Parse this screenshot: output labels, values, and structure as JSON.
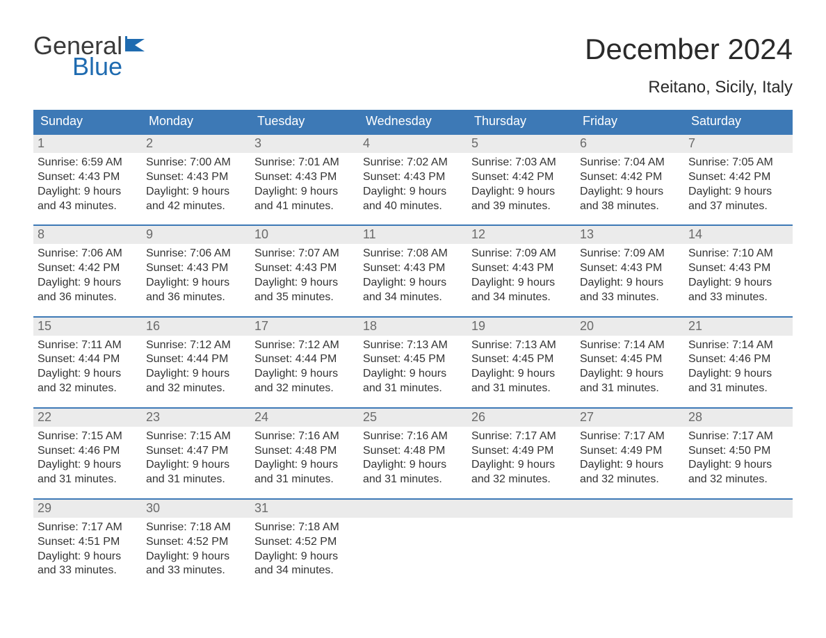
{
  "colors": {
    "header_bg": "#3d79b6",
    "header_text": "#ffffff",
    "daynum_bg": "#ebebeb",
    "daynum_text": "#6a6a6a",
    "body_text": "#333333",
    "week_border": "#3d79b6",
    "logo_gray": "#3a3a3a",
    "logo_blue": "#1f6bb0",
    "page_bg": "#ffffff"
  },
  "logo": {
    "line1": "General",
    "line2": "Blue"
  },
  "title": "December 2024",
  "location": "Reitano, Sicily, Italy",
  "daysOfWeek": [
    "Sunday",
    "Monday",
    "Tuesday",
    "Wednesday",
    "Thursday",
    "Friday",
    "Saturday"
  ],
  "weeks": [
    [
      {
        "n": "1",
        "sunrise": "Sunrise: 6:59 AM",
        "sunset": "Sunset: 4:43 PM",
        "d1": "Daylight: 9 hours",
        "d2": "and 43 minutes."
      },
      {
        "n": "2",
        "sunrise": "Sunrise: 7:00 AM",
        "sunset": "Sunset: 4:43 PM",
        "d1": "Daylight: 9 hours",
        "d2": "and 42 minutes."
      },
      {
        "n": "3",
        "sunrise": "Sunrise: 7:01 AM",
        "sunset": "Sunset: 4:43 PM",
        "d1": "Daylight: 9 hours",
        "d2": "and 41 minutes."
      },
      {
        "n": "4",
        "sunrise": "Sunrise: 7:02 AM",
        "sunset": "Sunset: 4:43 PM",
        "d1": "Daylight: 9 hours",
        "d2": "and 40 minutes."
      },
      {
        "n": "5",
        "sunrise": "Sunrise: 7:03 AM",
        "sunset": "Sunset: 4:42 PM",
        "d1": "Daylight: 9 hours",
        "d2": "and 39 minutes."
      },
      {
        "n": "6",
        "sunrise": "Sunrise: 7:04 AM",
        "sunset": "Sunset: 4:42 PM",
        "d1": "Daylight: 9 hours",
        "d2": "and 38 minutes."
      },
      {
        "n": "7",
        "sunrise": "Sunrise: 7:05 AM",
        "sunset": "Sunset: 4:42 PM",
        "d1": "Daylight: 9 hours",
        "d2": "and 37 minutes."
      }
    ],
    [
      {
        "n": "8",
        "sunrise": "Sunrise: 7:06 AM",
        "sunset": "Sunset: 4:42 PM",
        "d1": "Daylight: 9 hours",
        "d2": "and 36 minutes."
      },
      {
        "n": "9",
        "sunrise": "Sunrise: 7:06 AM",
        "sunset": "Sunset: 4:43 PM",
        "d1": "Daylight: 9 hours",
        "d2": "and 36 minutes."
      },
      {
        "n": "10",
        "sunrise": "Sunrise: 7:07 AM",
        "sunset": "Sunset: 4:43 PM",
        "d1": "Daylight: 9 hours",
        "d2": "and 35 minutes."
      },
      {
        "n": "11",
        "sunrise": "Sunrise: 7:08 AM",
        "sunset": "Sunset: 4:43 PM",
        "d1": "Daylight: 9 hours",
        "d2": "and 34 minutes."
      },
      {
        "n": "12",
        "sunrise": "Sunrise: 7:09 AM",
        "sunset": "Sunset: 4:43 PM",
        "d1": "Daylight: 9 hours",
        "d2": "and 34 minutes."
      },
      {
        "n": "13",
        "sunrise": "Sunrise: 7:09 AM",
        "sunset": "Sunset: 4:43 PM",
        "d1": "Daylight: 9 hours",
        "d2": "and 33 minutes."
      },
      {
        "n": "14",
        "sunrise": "Sunrise: 7:10 AM",
        "sunset": "Sunset: 4:43 PM",
        "d1": "Daylight: 9 hours",
        "d2": "and 33 minutes."
      }
    ],
    [
      {
        "n": "15",
        "sunrise": "Sunrise: 7:11 AM",
        "sunset": "Sunset: 4:44 PM",
        "d1": "Daylight: 9 hours",
        "d2": "and 32 minutes."
      },
      {
        "n": "16",
        "sunrise": "Sunrise: 7:12 AM",
        "sunset": "Sunset: 4:44 PM",
        "d1": "Daylight: 9 hours",
        "d2": "and 32 minutes."
      },
      {
        "n": "17",
        "sunrise": "Sunrise: 7:12 AM",
        "sunset": "Sunset: 4:44 PM",
        "d1": "Daylight: 9 hours",
        "d2": "and 32 minutes."
      },
      {
        "n": "18",
        "sunrise": "Sunrise: 7:13 AM",
        "sunset": "Sunset: 4:45 PM",
        "d1": "Daylight: 9 hours",
        "d2": "and 31 minutes."
      },
      {
        "n": "19",
        "sunrise": "Sunrise: 7:13 AM",
        "sunset": "Sunset: 4:45 PM",
        "d1": "Daylight: 9 hours",
        "d2": "and 31 minutes."
      },
      {
        "n": "20",
        "sunrise": "Sunrise: 7:14 AM",
        "sunset": "Sunset: 4:45 PM",
        "d1": "Daylight: 9 hours",
        "d2": "and 31 minutes."
      },
      {
        "n": "21",
        "sunrise": "Sunrise: 7:14 AM",
        "sunset": "Sunset: 4:46 PM",
        "d1": "Daylight: 9 hours",
        "d2": "and 31 minutes."
      }
    ],
    [
      {
        "n": "22",
        "sunrise": "Sunrise: 7:15 AM",
        "sunset": "Sunset: 4:46 PM",
        "d1": "Daylight: 9 hours",
        "d2": "and 31 minutes."
      },
      {
        "n": "23",
        "sunrise": "Sunrise: 7:15 AM",
        "sunset": "Sunset: 4:47 PM",
        "d1": "Daylight: 9 hours",
        "d2": "and 31 minutes."
      },
      {
        "n": "24",
        "sunrise": "Sunrise: 7:16 AM",
        "sunset": "Sunset: 4:48 PM",
        "d1": "Daylight: 9 hours",
        "d2": "and 31 minutes."
      },
      {
        "n": "25",
        "sunrise": "Sunrise: 7:16 AM",
        "sunset": "Sunset: 4:48 PM",
        "d1": "Daylight: 9 hours",
        "d2": "and 31 minutes."
      },
      {
        "n": "26",
        "sunrise": "Sunrise: 7:17 AM",
        "sunset": "Sunset: 4:49 PM",
        "d1": "Daylight: 9 hours",
        "d2": "and 32 minutes."
      },
      {
        "n": "27",
        "sunrise": "Sunrise: 7:17 AM",
        "sunset": "Sunset: 4:49 PM",
        "d1": "Daylight: 9 hours",
        "d2": "and 32 minutes."
      },
      {
        "n": "28",
        "sunrise": "Sunrise: 7:17 AM",
        "sunset": "Sunset: 4:50 PM",
        "d1": "Daylight: 9 hours",
        "d2": "and 32 minutes."
      }
    ],
    [
      {
        "n": "29",
        "sunrise": "Sunrise: 7:17 AM",
        "sunset": "Sunset: 4:51 PM",
        "d1": "Daylight: 9 hours",
        "d2": "and 33 minutes."
      },
      {
        "n": "30",
        "sunrise": "Sunrise: 7:18 AM",
        "sunset": "Sunset: 4:52 PM",
        "d1": "Daylight: 9 hours",
        "d2": "and 33 minutes."
      },
      {
        "n": "31",
        "sunrise": "Sunrise: 7:18 AM",
        "sunset": "Sunset: 4:52 PM",
        "d1": "Daylight: 9 hours",
        "d2": "and 34 minutes."
      },
      {
        "empty": true
      },
      {
        "empty": true
      },
      {
        "empty": true
      },
      {
        "empty": true
      }
    ]
  ]
}
